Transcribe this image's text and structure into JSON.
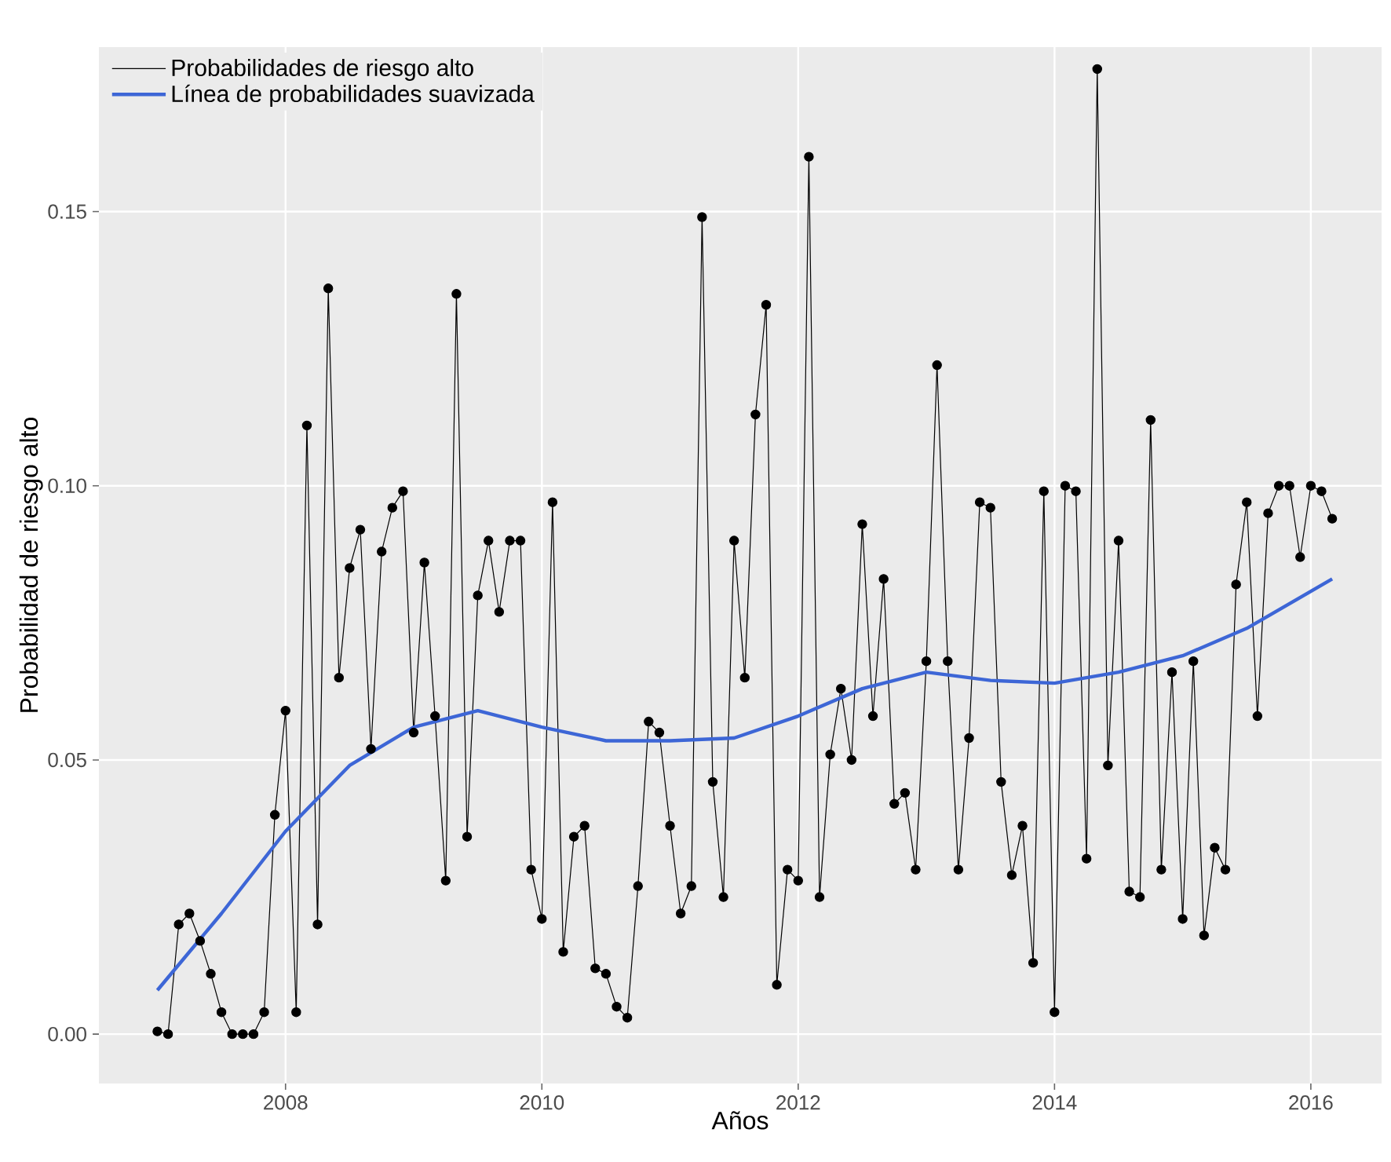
{
  "chart_data": {
    "type": "line",
    "xlabel": "Años",
    "ylabel": "Probabilidad de riesgo alto",
    "x": [
      "2007-01",
      "2007-02",
      "2007-03",
      "2007-04",
      "2007-05",
      "2007-06",
      "2007-07",
      "2007-08",
      "2007-09",
      "2007-10",
      "2007-11",
      "2007-12",
      "2008-01",
      "2008-02",
      "2008-03",
      "2008-04",
      "2008-05",
      "2008-06",
      "2008-07",
      "2008-08",
      "2008-09",
      "2008-10",
      "2008-11",
      "2008-12",
      "2009-01",
      "2009-02",
      "2009-03",
      "2009-04",
      "2009-05",
      "2009-06",
      "2009-07",
      "2009-08",
      "2009-09",
      "2009-10",
      "2009-11",
      "2009-12",
      "2010-01",
      "2010-02",
      "2010-03",
      "2010-04",
      "2010-05",
      "2010-06",
      "2010-07",
      "2010-08",
      "2010-09",
      "2010-10",
      "2010-11",
      "2010-12",
      "2011-01",
      "2011-02",
      "2011-03",
      "2011-04",
      "2011-05",
      "2011-06",
      "2011-07",
      "2011-08",
      "2011-09",
      "2011-10",
      "2011-11",
      "2011-12",
      "2012-01",
      "2012-02",
      "2012-03",
      "2012-04",
      "2012-05",
      "2012-06",
      "2012-07",
      "2012-08",
      "2012-09",
      "2012-10",
      "2012-11",
      "2012-12",
      "2013-01",
      "2013-02",
      "2013-03",
      "2013-04",
      "2013-05",
      "2013-06",
      "2013-07",
      "2013-08",
      "2013-09",
      "2013-10",
      "2013-11",
      "2013-12",
      "2014-01",
      "2014-02",
      "2014-03",
      "2014-04",
      "2014-05",
      "2014-06",
      "2014-07",
      "2014-08",
      "2014-09",
      "2014-10",
      "2014-11",
      "2014-12",
      "2015-01",
      "2015-02",
      "2015-03",
      "2015-04",
      "2015-05",
      "2015-06",
      "2015-07",
      "2015-08",
      "2015-09",
      "2015-10",
      "2015-11",
      "2015-12",
      "2016-01",
      "2016-02",
      "2016-03"
    ],
    "series": [
      {
        "name": "Probabilidades de riesgo alto",
        "color": "#000000",
        "marker": "circle",
        "values": [
          0.0005,
          0.0,
          0.02,
          0.022,
          0.017,
          0.011,
          0.004,
          0.0,
          0.0,
          0.0,
          0.004,
          0.04,
          0.059,
          0.004,
          0.111,
          0.02,
          0.136,
          0.065,
          0.085,
          0.092,
          0.052,
          0.088,
          0.096,
          0.099,
          0.055,
          0.086,
          0.058,
          0.028,
          0.135,
          0.036,
          0.08,
          0.09,
          0.077,
          0.09,
          0.09,
          0.03,
          0.021,
          0.097,
          0.015,
          0.036,
          0.038,
          0.012,
          0.011,
          0.005,
          0.003,
          0.027,
          0.057,
          0.055,
          0.038,
          0.022,
          0.027,
          0.149,
          0.046,
          0.025,
          0.09,
          0.065,
          0.113,
          0.133,
          0.009,
          0.03,
          0.028,
          0.16,
          0.025,
          0.051,
          0.063,
          0.05,
          0.093,
          0.058,
          0.083,
          0.042,
          0.044,
          0.03,
          0.068,
          0.122,
          0.068,
          0.03,
          0.054,
          0.097,
          0.096,
          0.046,
          0.029,
          0.038,
          0.013,
          0.099,
          0.004,
          0.1,
          0.099,
          0.032,
          0.176,
          0.049,
          0.09,
          0.026,
          0.025,
          0.112,
          0.03,
          0.066,
          0.021,
          0.068,
          0.018,
          0.034,
          0.03,
          0.082,
          0.097,
          0.058,
          0.095,
          0.1,
          0.1,
          0.087,
          0.1,
          0.099,
          0.094
        ]
      },
      {
        "name": "Línea de probabilidades suavizada",
        "color": "#3d66d6",
        "marker": "none",
        "x": [
          "2007-01",
          "2007-07",
          "2008-01",
          "2008-07",
          "2009-01",
          "2009-07",
          "2010-01",
          "2010-07",
          "2011-01",
          "2011-07",
          "2012-01",
          "2012-07",
          "2013-01",
          "2013-07",
          "2014-01",
          "2014-07",
          "2015-01",
          "2015-07",
          "2016-03"
        ],
        "values": [
          0.008,
          0.022,
          0.037,
          0.049,
          0.056,
          0.059,
          0.056,
          0.0535,
          0.0535,
          0.054,
          0.058,
          0.063,
          0.066,
          0.0645,
          0.064,
          0.066,
          0.069,
          0.074,
          0.083
        ]
      }
    ],
    "xlim": [
      "2006-07-17",
      "2016-07-20"
    ],
    "xticks": [
      "2008",
      "2010",
      "2012",
      "2014",
      "2016"
    ],
    "ylim": [
      -0.009,
      0.18
    ],
    "yticks": [
      {
        "value": 0,
        "label": "0.00"
      },
      {
        "value": 0.05,
        "label": "0.05"
      },
      {
        "value": 0.1,
        "label": "0.10"
      },
      {
        "value": 0.15,
        "label": "0.15"
      }
    ],
    "grid": true,
    "legend": "top left"
  }
}
